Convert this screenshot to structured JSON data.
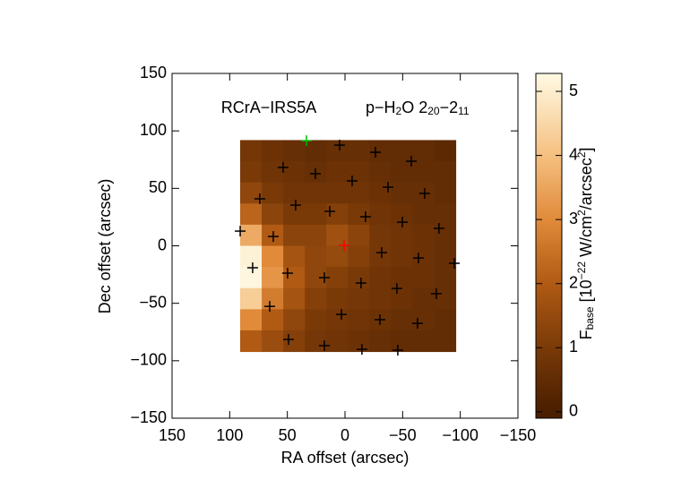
{
  "chart_data": {
    "type": "heatmap",
    "title": "RCrA−IRS5A",
    "subtitle_parts": [
      "p−H",
      "2",
      "O 2",
      "20",
      "−2",
      "11"
    ],
    "x_label": "RA offset (arcsec)",
    "y_label": "Dec offset (arcsec)",
    "xlim": [
      150,
      -150
    ],
    "ylim": [
      -150,
      150
    ],
    "xticks": [
      150,
      100,
      50,
      0,
      {
        "value": -50,
        "label": "−50"
      },
      {
        "value": -100,
        "label": "−100"
      },
      {
        "value": -150,
        "label": "−150"
      }
    ],
    "yticks": [
      {
        "value": -150,
        "label": "−150"
      },
      {
        "value": -100,
        "label": "−100"
      },
      {
        "value": -50,
        "label": "−50"
      },
      0,
      50,
      100,
      150
    ],
    "x": [
      81.6,
      62.9,
      44.2,
      25.5,
      6.8,
      -11.9,
      -30.6,
      -49.3,
      -68.0,
      -86.7
    ],
    "y": [
      82.8,
      64.4,
      46.0,
      27.6,
      9.2,
      -9.2,
      -27.6,
      -46.0,
      -64.4,
      -82.8
    ],
    "z": [
      [
        0.9,
        0.7,
        0.6,
        0.5,
        0.6,
        0.6,
        0.5,
        0.5,
        0.5,
        0.4
      ],
      [
        1.0,
        0.8,
        0.7,
        0.6,
        0.7,
        0.7,
        0.6,
        0.5,
        0.5,
        0.5
      ],
      [
        1.4,
        1.0,
        0.8,
        0.8,
        0.8,
        0.8,
        0.7,
        0.6,
        0.6,
        0.5
      ],
      [
        2.2,
        1.3,
        1.0,
        1.0,
        1.2,
        1.0,
        0.8,
        0.7,
        0.6,
        0.6
      ],
      [
        3.6,
        2.0,
        1.3,
        1.3,
        1.7,
        1.3,
        0.9,
        0.8,
        0.7,
        0.6
      ],
      [
        5.1,
        3.0,
        1.8,
        1.4,
        1.5,
        1.2,
        0.9,
        0.8,
        0.7,
        0.6
      ],
      [
        5.2,
        3.2,
        2.0,
        1.4,
        1.2,
        1.0,
        0.8,
        0.7,
        0.7,
        0.6
      ],
      [
        4.3,
        2.7,
        1.8,
        1.2,
        1.0,
        0.9,
        0.8,
        0.7,
        0.6,
        0.6
      ],
      [
        3.0,
        2.0,
        1.4,
        1.0,
        0.9,
        0.8,
        0.7,
        0.6,
        0.6,
        0.5
      ],
      [
        2.0,
        1.6,
        1.2,
        0.9,
        0.8,
        0.7,
        0.6,
        0.5,
        0.5,
        0.5
      ]
    ],
    "colorscale": {
      "values": [
        0,
        1,
        2,
        3,
        4,
        5.3
      ],
      "colors": [
        "#4a1e00",
        "#7a3a08",
        "#b05a14",
        "#e08a3a",
        "#f5c080",
        "#fffbe6"
      ]
    },
    "markers": {
      "x": [
        33.4,
        4.7,
        -26.4,
        -57.5,
        53.7,
        25.7,
        -6.2,
        -37.3,
        -69.1,
        73.9,
        42.8,
        13.2,
        -17.8,
        -49.7,
        -81.5,
        90.9,
        62.2,
        0.8,
        -31.8,
        -63.7,
        -94.8,
        80.1,
        49.8,
        17.9,
        -13.9,
        -45.0,
        -79.2,
        65.3,
        3.1,
        -30.3,
        -62.9,
        49.0,
        17.9,
        -14.7,
        -45.8
      ],
      "y": [
        91.5,
        87.6,
        81.4,
        73.6,
        68.2,
        62.7,
        56.5,
        51.0,
        45.6,
        40.9,
        35.4,
        30.0,
        25.3,
        20.6,
        15.2,
        12.8,
        8.1,
        0.4,
        -5.9,
        -10.6,
        -15.2,
        -19.1,
        -23.8,
        -27.7,
        -32.4,
        -37.1,
        -41.7,
        -52.7,
        -59.7,
        -64.3,
        -67.5,
        -81.5,
        -86.9,
        -90.1,
        -90.8
      ],
      "colors": [
        "#00c000",
        "#000000",
        "#000000",
        "#000000",
        "#000000",
        "#000000",
        "#000000",
        "#000000",
        "#000000",
        "#000000",
        "#000000",
        "#000000",
        "#000000",
        "#000000",
        "#000000",
        "#000000",
        "#000000",
        "#ff0000",
        "#000000",
        "#000000",
        "#000000",
        "#000000",
        "#000000",
        "#000000",
        "#000000",
        "#000000",
        "#000000",
        "#000000",
        "#000000",
        "#000000",
        "#000000",
        "#000000",
        "#000000",
        "#000000",
        "#000000"
      ]
    },
    "colorbar": {
      "lim": [
        -0.1,
        5.28
      ],
      "ticks": [
        0,
        1,
        2,
        3,
        4,
        5
      ],
      "label_parts": [
        "F",
        "base",
        " [10",
        "−22",
        " W/cm",
        "2",
        "/arcsec",
        "2",
        "]"
      ]
    }
  }
}
